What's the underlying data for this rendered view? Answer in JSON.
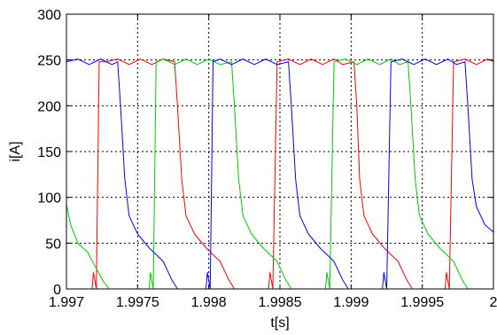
{
  "chart_data": {
    "type": "line",
    "xlabel": "t[s]",
    "ylabel": "i[A]",
    "xlim": [
      1.997,
      2.0
    ],
    "ylim": [
      0,
      300
    ],
    "grid": true,
    "x_ticks": [
      1.997,
      1.9975,
      1.998,
      1.9985,
      1.999,
      1.9995,
      2.0
    ],
    "x_tick_labels": [
      "1.997",
      "1.9975",
      "1.998",
      "1.9985",
      "1.999",
      "1.9995",
      "2"
    ],
    "y_ticks": [
      0,
      50,
      100,
      150,
      200,
      250,
      300
    ],
    "y_tick_labels": [
      "0",
      "50",
      "100",
      "150",
      "200",
      "250",
      "300"
    ],
    "series": [
      {
        "color": "#ff0000",
        "points": [
          [
            1.997,
            0
          ],
          [
            1.99718,
            0
          ],
          [
            1.99719,
            18
          ],
          [
            1.99721,
            0
          ],
          [
            1.99723,
            248
          ],
          [
            1.99728,
            248
          ],
          [
            1.99736,
            251
          ],
          [
            1.99744,
            245
          ],
          [
            1.99752,
            251
          ],
          [
            1.9976,
            245
          ],
          [
            1.99768,
            251
          ],
          [
            1.99776,
            248
          ],
          [
            1.99778,
            200
          ],
          [
            1.99781,
            120
          ],
          [
            1.99784,
            80
          ],
          [
            1.9979,
            60
          ],
          [
            1.99798,
            45
          ],
          [
            1.99808,
            30
          ],
          [
            1.99814,
            10
          ],
          [
            1.99818,
            0
          ],
          [
            1.99842,
            0
          ],
          [
            1.99843,
            18
          ],
          [
            1.99845,
            0
          ],
          [
            1.99848,
            248
          ],
          [
            1.99856,
            251
          ],
          [
            1.99864,
            245
          ],
          [
            1.99872,
            251
          ],
          [
            1.9988,
            245
          ],
          [
            1.99888,
            251
          ],
          [
            1.99894,
            245
          ],
          [
            1.99902,
            248
          ],
          [
            1.99904,
            200
          ],
          [
            1.99906,
            120
          ],
          [
            1.99909,
            80
          ],
          [
            1.99915,
            60
          ],
          [
            1.99923,
            45
          ],
          [
            1.99933,
            30
          ],
          [
            1.99939,
            10
          ],
          [
            1.99943,
            0
          ],
          [
            1.99966,
            0
          ],
          [
            1.99967,
            18
          ],
          [
            1.99969,
            0
          ],
          [
            1.99972,
            248
          ],
          [
            1.9998,
            251
          ],
          [
            1.99988,
            245
          ],
          [
            1.99996,
            251
          ],
          [
            2.0,
            248
          ]
        ]
      },
      {
        "color": "#00cc00",
        "points": [
          [
            1.997,
            92
          ],
          [
            1.99703,
            70
          ],
          [
            1.99708,
            50
          ],
          [
            1.99715,
            40
          ],
          [
            1.9972,
            25
          ],
          [
            1.99726,
            8
          ],
          [
            1.9973,
            0
          ],
          [
            1.99758,
            0
          ],
          [
            1.99759,
            18
          ],
          [
            1.99761,
            0
          ],
          [
            1.99763,
            248
          ],
          [
            1.99768,
            251
          ],
          [
            1.99776,
            245
          ],
          [
            1.99784,
            251
          ],
          [
            1.99792,
            245
          ],
          [
            1.998,
            251
          ],
          [
            1.99808,
            245
          ],
          [
            1.99816,
            248
          ],
          [
            1.99818,
            200
          ],
          [
            1.99821,
            120
          ],
          [
            1.99824,
            80
          ],
          [
            1.9983,
            60
          ],
          [
            1.99838,
            45
          ],
          [
            1.99848,
            30
          ],
          [
            1.99854,
            10
          ],
          [
            1.99858,
            0
          ],
          [
            1.99882,
            0
          ],
          [
            1.99883,
            18
          ],
          [
            1.99885,
            0
          ],
          [
            1.99888,
            248
          ],
          [
            1.99896,
            251
          ],
          [
            1.99904,
            245
          ],
          [
            1.99912,
            251
          ],
          [
            1.9992,
            245
          ],
          [
            1.99928,
            251
          ],
          [
            1.99934,
            245
          ],
          [
            1.9994,
            248
          ],
          [
            1.99942,
            200
          ],
          [
            1.99945,
            120
          ],
          [
            1.99948,
            80
          ],
          [
            1.99954,
            60
          ],
          [
            1.99962,
            45
          ],
          [
            1.99972,
            30
          ],
          [
            1.99978,
            10
          ],
          [
            1.99982,
            0
          ],
          [
            2.0,
            0
          ]
        ]
      },
      {
        "color": "#0000ff",
        "points": [
          [
            1.997,
            248
          ],
          [
            1.99708,
            251
          ],
          [
            1.99716,
            245
          ],
          [
            1.99724,
            251
          ],
          [
            1.99732,
            245
          ],
          [
            1.99736,
            248
          ],
          [
            1.99738,
            200
          ],
          [
            1.99741,
            120
          ],
          [
            1.99744,
            80
          ],
          [
            1.9975,
            60
          ],
          [
            1.99758,
            45
          ],
          [
            1.99768,
            30
          ],
          [
            1.99774,
            10
          ],
          [
            1.99778,
            0
          ],
          [
            1.99798,
            0
          ],
          [
            1.99799,
            18
          ],
          [
            1.99801,
            0
          ],
          [
            1.99803,
            248
          ],
          [
            1.99808,
            251
          ],
          [
            1.99816,
            245
          ],
          [
            1.99824,
            251
          ],
          [
            1.99832,
            245
          ],
          [
            1.9984,
            251
          ],
          [
            1.99848,
            245
          ],
          [
            1.99856,
            248
          ],
          [
            1.99858,
            200
          ],
          [
            1.99861,
            120
          ],
          [
            1.99864,
            80
          ],
          [
            1.9987,
            60
          ],
          [
            1.99878,
            45
          ],
          [
            1.99888,
            30
          ],
          [
            1.99894,
            10
          ],
          [
            1.99898,
            0
          ],
          [
            1.99922,
            0
          ],
          [
            1.99923,
            18
          ],
          [
            1.99925,
            0
          ],
          [
            1.99928,
            248
          ],
          [
            1.99936,
            251
          ],
          [
            1.99944,
            245
          ],
          [
            1.99952,
            251
          ],
          [
            1.9996,
            245
          ],
          [
            1.99968,
            251
          ],
          [
            1.99974,
            245
          ],
          [
            1.9998,
            248
          ],
          [
            1.99982,
            200
          ],
          [
            1.99985,
            120
          ],
          [
            1.99988,
            90
          ],
          [
            1.99994,
            70
          ],
          [
            2.0,
            62
          ]
        ]
      }
    ]
  }
}
